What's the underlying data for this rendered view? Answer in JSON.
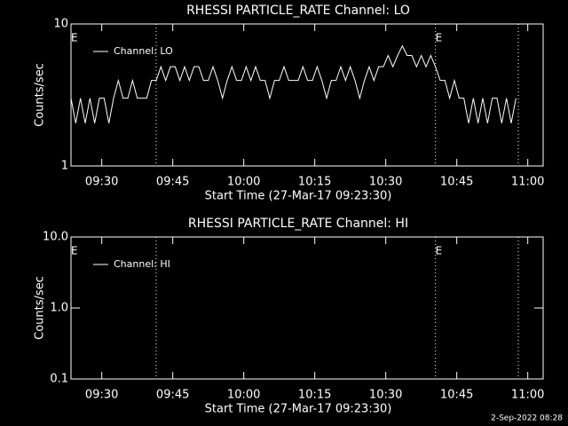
{
  "chart_data": [
    {
      "type": "line",
      "title": "RHESSI PARTICLE_RATE Channel: LO",
      "x_label": "Start Time (27-Mar-17 09:23:30)",
      "y_label": "Counts/sec",
      "x": [
        0,
        1,
        2,
        3,
        4,
        5,
        6,
        7,
        8,
        9,
        10,
        11,
        12,
        13,
        14,
        15,
        16,
        17,
        18,
        19,
        20,
        21,
        22,
        23,
        24,
        25,
        26,
        27,
        28,
        29,
        30,
        31,
        32,
        33,
        34,
        35,
        36,
        37,
        38,
        39,
        40,
        41,
        42,
        43,
        44,
        45,
        46,
        47,
        48,
        49,
        50,
        51,
        52,
        53,
        54,
        55,
        56,
        57,
        58,
        59,
        60,
        61,
        62,
        63,
        64,
        65,
        66,
        67,
        68,
        69,
        70,
        71,
        72,
        73,
        74,
        75,
        76,
        77,
        78,
        79,
        80,
        81,
        82,
        83,
        84,
        85,
        86,
        87,
        88,
        89,
        90,
        91,
        92,
        93,
        94
      ],
      "series": [
        {
          "name": "Channel: LO",
          "color": "#ffffff",
          "values": [
            3,
            2,
            3,
            2,
            3,
            2,
            3,
            3,
            2,
            3,
            4,
            3,
            3,
            4,
            3,
            3,
            3,
            4,
            4,
            5,
            4,
            5,
            5,
            4,
            5,
            4,
            5,
            5,
            4,
            4,
            5,
            4,
            3,
            4,
            5,
            4,
            4,
            5,
            4,
            5,
            4,
            4,
            3,
            4,
            4,
            5,
            4,
            4,
            4,
            5,
            4,
            4,
            5,
            4,
            3,
            4,
            4,
            5,
            4,
            5,
            4,
            3,
            4,
            5,
            4,
            5,
            5,
            6,
            5,
            6,
            7,
            6,
            6,
            5,
            6,
            5,
            6,
            5,
            4,
            4,
            3,
            4,
            3,
            3,
            2,
            3,
            2,
            3,
            2,
            3,
            3,
            2,
            3,
            2,
            3
          ]
        }
      ],
      "xlim": [
        0,
        99.75
      ],
      "xticks": [
        {
          "value": 6.5,
          "label": "09:30"
        },
        {
          "value": 21.5,
          "label": "09:45"
        },
        {
          "value": 36.5,
          "label": "10:00"
        },
        {
          "value": 51.5,
          "label": "10:15"
        },
        {
          "value": 66.5,
          "label": "10:30"
        },
        {
          "value": 81.5,
          "label": "10:45"
        },
        {
          "value": 96.5,
          "label": "11:00"
        }
      ],
      "ylim": [
        1,
        10
      ],
      "yticks": [
        1,
        10
      ],
      "log_y": true,
      "events": [
        {
          "x": 0,
          "label": "E"
        },
        {
          "x": 77,
          "label": "E"
        }
      ],
      "dotted_lines": [
        18,
        77,
        94.5
      ]
    },
    {
      "type": "line",
      "title": "RHESSI PARTICLE_RATE Channel: HI",
      "x_label": "Start Time (27-Mar-17 09:23:30)",
      "y_label": "Counts/sec",
      "x": [],
      "series": [
        {
          "name": "Channel: HI",
          "color": "#ffffff",
          "values": []
        }
      ],
      "xlim": [
        0,
        99.75
      ],
      "xticks": [
        {
          "value": 6.5,
          "label": "09:30"
        },
        {
          "value": 21.5,
          "label": "09:45"
        },
        {
          "value": 36.5,
          "label": "10:00"
        },
        {
          "value": 51.5,
          "label": "10:15"
        },
        {
          "value": 66.5,
          "label": "10:30"
        },
        {
          "value": 81.5,
          "label": "10:45"
        },
        {
          "value": 96.5,
          "label": "11:00"
        }
      ],
      "ylim": [
        0.1,
        10
      ],
      "yticks": [
        {
          "value": 0.1,
          "label": "0.1"
        },
        {
          "value": 1,
          "label": "1.0"
        },
        {
          "value": 10,
          "label": "10.0"
        }
      ],
      "log_y": true,
      "events": [
        {
          "x": 0,
          "label": "E"
        },
        {
          "x": 77,
          "label": "E"
        }
      ],
      "dotted_lines": [
        18,
        77,
        94.5
      ]
    }
  ],
  "footer": "2-Sep-2022 08:28"
}
